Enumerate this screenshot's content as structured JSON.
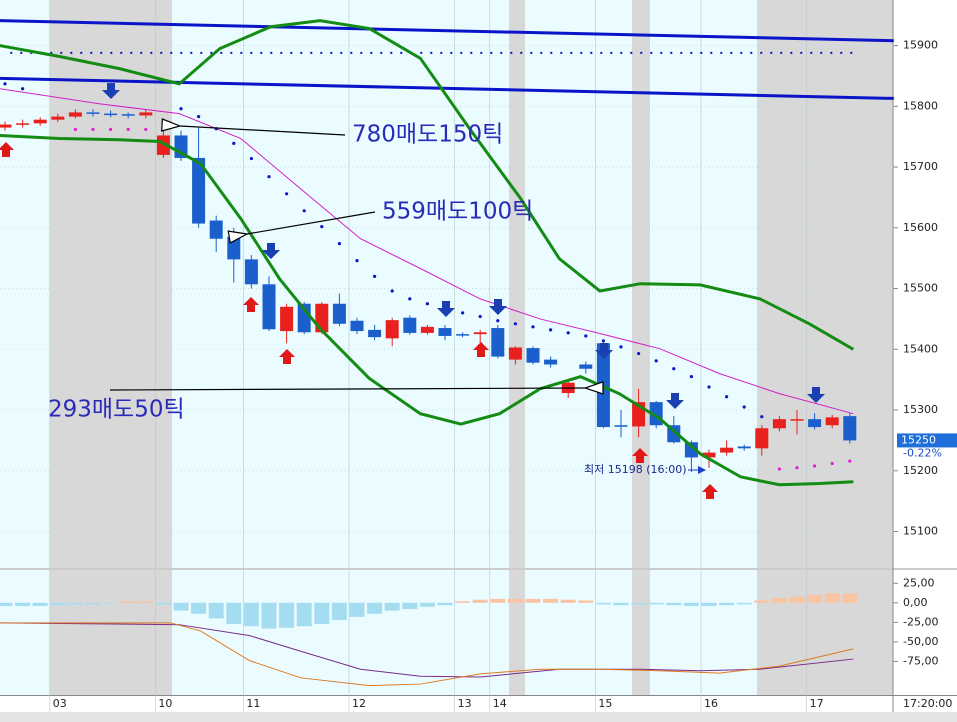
{
  "chart_data": [
    {
      "type": "candlestick",
      "categories": [
        null,
        null,
        null,
        "03",
        null,
        null,
        null,
        null,
        null,
        "10",
        null,
        null,
        null,
        null,
        "11",
        null,
        null,
        null,
        null,
        null,
        "12",
        null,
        null,
        null,
        null,
        null,
        "13",
        null,
        "14",
        null,
        null,
        null,
        null,
        null,
        "15",
        null,
        null,
        null,
        null,
        null,
        "16",
        null,
        null,
        null,
        null,
        null,
        "17",
        null,
        null
      ],
      "open": [
        15765,
        15770,
        15772,
        15778,
        15783,
        15790,
        15788,
        15787,
        15785,
        15720,
        15752,
        15715,
        15612,
        15585,
        15548,
        15507,
        15430,
        15475,
        15428,
        15475,
        15447,
        15432,
        15418,
        15452,
        15427,
        15435,
        15425,
        15425,
        15435,
        15383,
        15402,
        15383,
        15328,
        15375,
        15410,
        15275,
        15273,
        15313,
        15275,
        15247,
        15222,
        15230,
        15240,
        15237,
        15270,
        15283,
        15285,
        15275,
        15290
      ],
      "high": [
        15775,
        15778,
        15782,
        15788,
        15795,
        15795,
        15793,
        15790,
        15795,
        15780,
        15760,
        15765,
        15620,
        15600,
        15555,
        15520,
        15475,
        15478,
        15478,
        15492,
        15452,
        15440,
        15452,
        15456,
        15440,
        15440,
        15428,
        15432,
        15440,
        15405,
        15405,
        15388,
        15350,
        15380,
        15415,
        15300,
        15335,
        15315,
        15290,
        15250,
        15235,
        15250,
        15243,
        15275,
        15290,
        15300,
        15295,
        15292,
        15295
      ],
      "low": [
        15760,
        15765,
        15768,
        15774,
        15780,
        15783,
        15782,
        15780,
        15780,
        15715,
        15710,
        15600,
        15560,
        15510,
        15500,
        15430,
        15410,
        15425,
        15425,
        15438,
        15425,
        15415,
        15405,
        15424,
        15424,
        15415,
        15420,
        15410,
        15385,
        15375,
        15375,
        15370,
        15320,
        15360,
        15270,
        15255,
        15255,
        15270,
        15245,
        15198,
        15205,
        15225,
        15233,
        15225,
        15265,
        15260,
        15268,
        15270,
        15245
      ],
      "close": [
        15770,
        15772,
        15778,
        15783,
        15790,
        15788,
        15787,
        15785,
        15790,
        15752,
        15715,
        15607,
        15582,
        15548,
        15507,
        15433,
        15470,
        15428,
        15475,
        15442,
        15430,
        15420,
        15448,
        15427,
        15437,
        15422,
        15424,
        15428,
        15388,
        15403,
        15378,
        15375,
        15345,
        15368,
        15272,
        15273,
        15313,
        15275,
        15247,
        15222,
        15230,
        15238,
        15237,
        15270,
        15285,
        15285,
        15272,
        15288,
        15250
      ],
      "up_color": "#e8201e",
      "down_color": "#1a5fcc",
      "ylim": [
        15040,
        15975
      ],
      "yticks": [
        15100,
        15200,
        15300,
        15400,
        15500,
        15600,
        15700,
        15800,
        15900
      ],
      "grid": true,
      "lines": [
        {
          "color": "#0a14c8",
          "width": 3,
          "x": [
            -0.3,
            50.5
          ],
          "values": [
            15941,
            15908
          ]
        },
        {
          "color": "#0a14c8",
          "width": 3,
          "x": [
            -0.3,
            50.5
          ],
          "values": [
            15846,
            15813
          ]
        },
        {
          "color": "#0a14c8",
          "width": 2,
          "dash": true,
          "x": [
            0.3,
            48.3
          ],
          "values": [
            15888,
            15888
          ]
        },
        {
          "color": "#148c14",
          "width": 3,
          "x": [
            -0.3,
            3.1,
            6.5,
            9.9,
            12.2,
            15.1,
            17.9,
            20.7,
            23.6,
            26.4,
            29.3,
            31.5,
            33.8,
            36.1,
            39.5,
            42.9,
            45.7,
            48.2
          ],
          "values": [
            15900,
            15882,
            15862,
            15837,
            15895,
            15931,
            15941,
            15928,
            15879,
            15763,
            15648,
            15549,
            15496,
            15508,
            15506,
            15483,
            15442,
            15400
          ]
        },
        {
          "color": "#148c14",
          "width": 3,
          "x": [
            -0.3,
            3.1,
            6.5,
            8.8,
            11.1,
            13.4,
            15.6,
            17.9,
            20.7,
            23.6,
            25.9,
            28.1,
            30.4,
            32.7,
            34.9,
            37.2,
            39.5,
            41.8,
            44,
            46.3,
            48.2
          ],
          "values": [
            15752,
            15747,
            15745,
            15742,
            15706,
            15615,
            15516,
            15434,
            15352,
            15294,
            15277,
            15294,
            15335,
            15355,
            15327,
            15286,
            15228,
            15190,
            15177,
            15179,
            15182
          ]
        },
        {
          "color": "#d020c8",
          "width": 1,
          "x": [
            -0.3,
            5.4,
            9.9,
            13.4,
            16.8,
            20.2,
            23.6,
            27,
            30.4,
            33.8,
            37.2,
            40.6,
            44,
            48.2
          ],
          "values": [
            15829,
            15804,
            15788,
            15747,
            15664,
            15582,
            15533,
            15483,
            15450,
            15426,
            15401,
            15360,
            15327,
            15294
          ]
        }
      ],
      "dots": [
        {
          "color": "#0a14c8",
          "x": [
            0,
            1,
            10,
            11,
            12,
            13,
            14,
            15,
            16,
            17,
            18,
            19,
            20,
            21,
            22,
            23,
            24,
            25,
            26,
            27,
            28,
            29,
            30,
            31,
            32,
            33,
            34,
            35,
            36,
            37,
            38,
            39,
            40,
            41,
            42,
            43
          ],
          "values": [
            15837,
            15829,
            15796,
            15783,
            15763,
            15739,
            15714,
            15684,
            15656,
            15628,
            15602,
            15574,
            15546,
            15520,
            15496,
            15483,
            15475,
            15467,
            15460,
            15454,
            15447,
            15442,
            15437,
            15432,
            15427,
            15422,
            15414,
            15404,
            15393,
            15381,
            15368,
            15355,
            15338,
            15322,
            15305,
            15289
          ]
        },
        {
          "color": "#e020d8",
          "x": [
            4,
            5,
            6,
            7,
            8,
            27,
            44,
            45,
            46,
            47,
            48
          ],
          "values": [
            15762,
            15762,
            15762,
            15762,
            15762,
            15404,
            15203,
            15205,
            15208,
            15212,
            15216
          ]
        }
      ],
      "annotations": [
        "780매도150틱",
        "559매도100틱",
        "293매도50틱"
      ],
      "low_label": "최저 15198 (16:00)",
      "last_price": 15250,
      "change_label": "-0.22%",
      "time_label": "17:20:00"
    },
    {
      "type": "bar",
      "values": [
        -4,
        -4,
        -4,
        -3,
        -2,
        -2,
        -1,
        2,
        2,
        -2,
        -10,
        -14,
        -20,
        -27,
        -30,
        -33,
        -32,
        -30,
        -27,
        -22,
        -18,
        -14,
        -10,
        -8,
        -5,
        -3,
        2,
        4,
        5,
        5,
        5,
        5,
        4,
        3,
        -2,
        -3,
        -2,
        -2,
        -3,
        -4,
        -4,
        -3,
        -2,
        3,
        6,
        8,
        10,
        12,
        12
      ],
      "pos_color": "#f8c4a4",
      "neg_color": "#a4dcf2",
      "ylim": [
        -118,
        42
      ],
      "yticks": [
        {
          "value": 25,
          "label": "25,00"
        },
        {
          "value": 0,
          "label": "0,00"
        },
        {
          "value": -25,
          "label": "-25,00"
        },
        {
          "value": -50,
          "label": "-50,00"
        },
        {
          "value": -75,
          "label": "-75,00"
        }
      ],
      "lines": [
        {
          "color": "#7a2a8a",
          "width": 1,
          "x": [
            -0.3,
            5.4,
            9.9,
            13.9,
            16.8,
            20.2,
            23.6,
            27,
            31.5,
            36.1,
            39.5,
            42.9,
            48.2
          ],
          "values": [
            -25.6,
            -27,
            -28,
            -42,
            -62,
            -85,
            -94,
            -95,
            -85,
            -85,
            -87,
            -85,
            -72
          ]
        },
        {
          "color": "#e07a20",
          "width": 1,
          "x": [
            -0.3,
            9.4,
            11.1,
            13.9,
            16.8,
            20.7,
            23.6,
            27,
            30.4,
            33.8,
            37.2,
            40.6,
            44,
            48.2
          ],
          "values": [
            -25.6,
            -25.6,
            -36,
            -74,
            -96,
            -106,
            -104,
            -91,
            -85,
            -85,
            -87,
            -90,
            -81,
            -59
          ]
        }
      ]
    }
  ]
}
